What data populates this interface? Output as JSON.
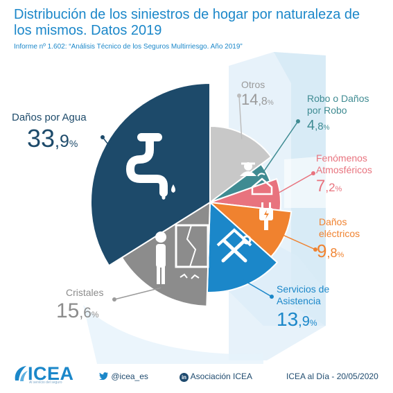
{
  "header": {
    "title": "Distribución de los siniestros de hogar por naturaleza de los mismos. Datos 2019",
    "subtitle": "Informe nº 1.602: “Análisis Técnico de los Seguros Multirriesgo. Año 2019”"
  },
  "colors": {
    "agua": "#1d4a6a",
    "otros": "#c8c8c8",
    "robo": "#3f8b92",
    "fenomenos": "#e8737e",
    "electricos": "#f0822f",
    "asistencia": "#1b87c9",
    "cristales": "#8c8c8c",
    "title": "#1b87c9"
  },
  "chart_data": {
    "type": "pie",
    "title": "Distribución de los siniestros de hogar por naturaleza de los mismos. Datos 2019",
    "unit": "%",
    "slices": [
      {
        "name": "Otros",
        "value": 14.8,
        "icon": "no-icon"
      },
      {
        "name": "Robo o Daños por Robo",
        "value": 4.8,
        "icon": "thief-icon"
      },
      {
        "name": "Fenómenos Atmosféricos",
        "value": 7.2,
        "icon": "storm-house-icon"
      },
      {
        "name": "Daños eléctricos",
        "value": 9.8,
        "icon": "plug-icon"
      },
      {
        "name": "Servicios de Asistencia",
        "value": 13.9,
        "icon": "tools-house-icon"
      },
      {
        "name": "Cristales",
        "value": 15.6,
        "icon": "broken-glass-icon"
      },
      {
        "name": "Daños por Agua",
        "value": 33.9,
        "icon": "leaking-pipe-icon"
      }
    ]
  },
  "labels": {
    "otros": {
      "name": "Otros",
      "int": "14",
      "dec": ",8",
      "sym": "%"
    },
    "robo": {
      "name_line1": "Robo o Daños",
      "name_line2": "por Robo",
      "int": "4",
      "dec": ",8",
      "sym": "%"
    },
    "fenomenos": {
      "name_line1": "Fenómenos",
      "name_line2": "Atmosféricos",
      "int": "7",
      "dec": ",2",
      "sym": "%"
    },
    "electricos": {
      "name_line1": "Daños",
      "name_line2": "eléctricos",
      "int": "9",
      "dec": ",8",
      "sym": "%"
    },
    "asistencia": {
      "name_line1": "Servicios de",
      "name_line2": "Asistencia",
      "int": "13",
      "dec": ",9",
      "sym": "%"
    },
    "cristales": {
      "name": "Cristales",
      "int": "15",
      "dec": ",6",
      "sym": "%"
    },
    "agua": {
      "name": "Daños por Agua",
      "int": "33",
      "dec": ",9",
      "sym": "%"
    }
  },
  "footer": {
    "logo_text": "ICEA",
    "logo_tagline": "Al servicio del seguro",
    "twitter": "@icea_es",
    "linkedin": "Asociación ICEA",
    "date_text": "ICEA al Día - 20/05/2020"
  }
}
